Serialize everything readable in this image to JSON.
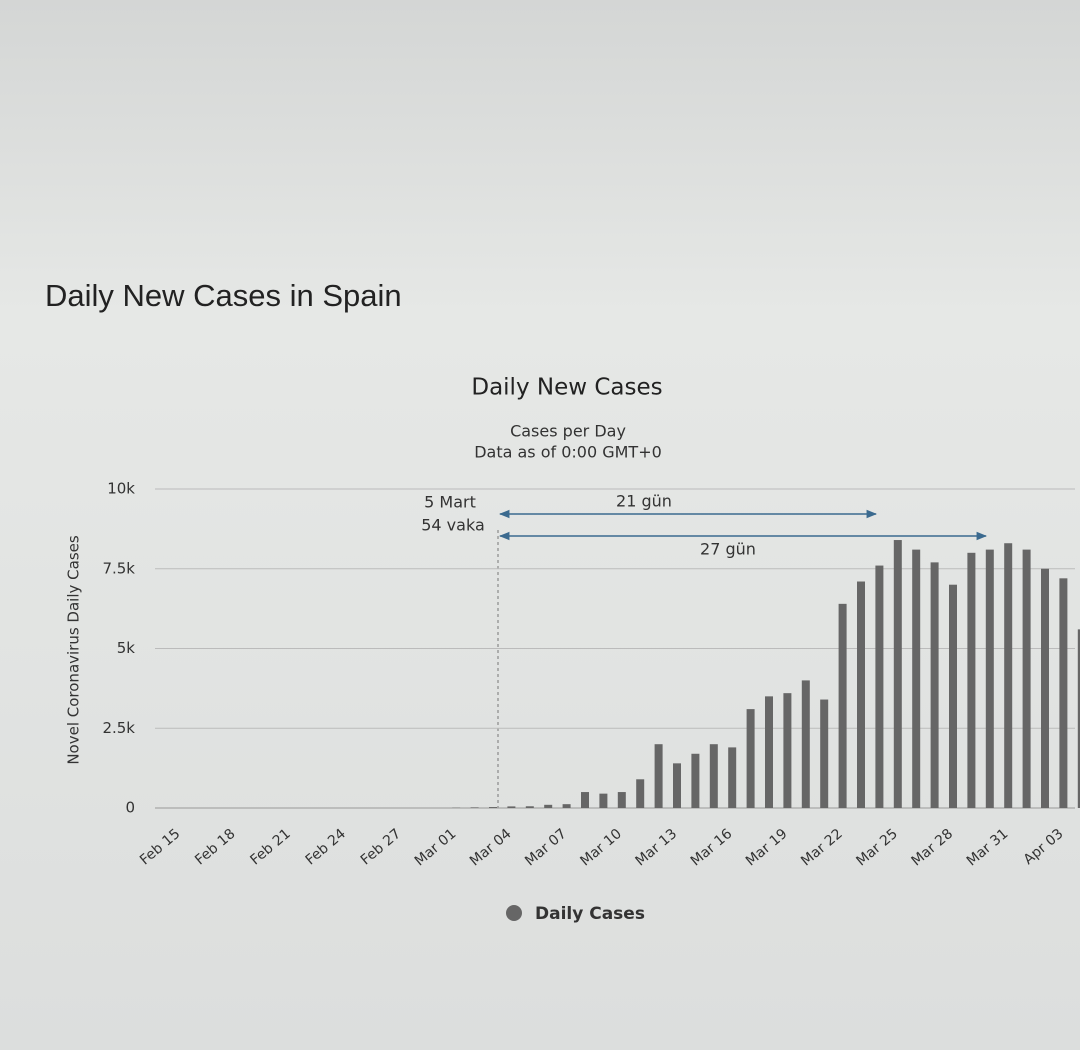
{
  "page_title": "Daily New Cases in Spain",
  "chart_data": {
    "type": "bar",
    "title": "Daily New Cases",
    "subtitle": [
      "Cases per Day",
      "Data as of 0:00 GMT+0"
    ],
    "y_label": "Novel Coronavirus Daily Cases",
    "categories": [
      "Feb 15",
      null,
      null,
      "Feb 18",
      null,
      null,
      "Feb 21",
      null,
      null,
      "Feb 24",
      null,
      null,
      "Feb 27",
      null,
      null,
      "Mar 01",
      null,
      null,
      "Mar 04",
      null,
      null,
      "Mar 07",
      null,
      null,
      "Mar 10",
      null,
      null,
      "Mar 13",
      null,
      null,
      "Mar 16",
      null,
      null,
      "Mar 19",
      null,
      null,
      "Mar 22",
      null,
      null,
      "Mar 25",
      null,
      null,
      "Mar 28",
      null,
      null,
      "Mar 31",
      null,
      null,
      "Apr 03",
      null
    ],
    "series": [
      {
        "name": "Daily Cases",
        "color": "#666666",
        "values": [
          0,
          0,
          0,
          0,
          0,
          0,
          0,
          0,
          0,
          0,
          0,
          0,
          0,
          0,
          0,
          10,
          20,
          30,
          50,
          54,
          100,
          120,
          500,
          450,
          500,
          900,
          2000,
          1400,
          1700,
          2000,
          1900,
          3100,
          3500,
          3600,
          4000,
          3400,
          6400,
          7100,
          7600,
          8400,
          8100,
          7700,
          7000,
          8000,
          8100,
          8300,
          8100,
          7500,
          7200,
          5600
        ]
      }
    ],
    "ylim": [
      0,
      10000
    ],
    "yticks": [
      0,
      {
        "value": 2500,
        "label": "2.5k"
      },
      {
        "value": 5000,
        "label": "5k"
      },
      {
        "value": 7500,
        "label": "7.5k"
      },
      {
        "value": 10000,
        "label": "10k"
      }
    ],
    "grid": true,
    "annotations": [
      "5 Mart",
      "54 vaka",
      "21 gün",
      "27 gün"
    ]
  }
}
